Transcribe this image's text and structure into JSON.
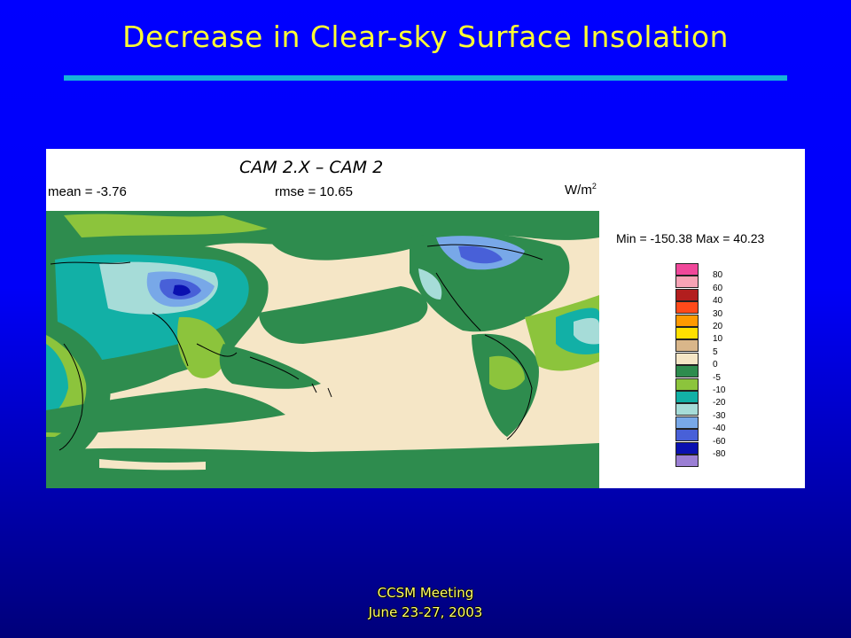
{
  "slide": {
    "title": "Decrease in Clear-sky Surface Insolation",
    "footer_line1": "CCSM Meeting",
    "footer_line2": "June 23-27, 2003"
  },
  "figure": {
    "caption": "CAM 2.X – CAM 2",
    "mean_text": "mean = -3.76",
    "rmse_text": "rmse = 10.65",
    "units_base": "W/m",
    "units_exp": "2",
    "minmax_text": "Min = -150.38 Max = 40.23",
    "legend": [
      {
        "label": "80",
        "color": "#f0489a"
      },
      {
        "label": "60",
        "color": "#f7a3b5"
      },
      {
        "label": "40",
        "color": "#b21e1e"
      },
      {
        "label": "30",
        "color": "#ff4a1a"
      },
      {
        "label": "20",
        "color": "#ff9a00"
      },
      {
        "label": "10",
        "color": "#ffe000"
      },
      {
        "label": "5",
        "color": "#d9b68a"
      },
      {
        "label": "0",
        "color": "#f5e6c6"
      },
      {
        "label": "-5",
        "color": "#2e8c4e"
      },
      {
        "label": "-10",
        "color": "#8cc43c"
      },
      {
        "label": "-20",
        "color": "#12b0a6"
      },
      {
        "label": "-30",
        "color": "#a6dcd8"
      },
      {
        "label": "-40",
        "color": "#78a8e8"
      },
      {
        "label": "-60",
        "color": "#4860d8"
      },
      {
        "label": "-80",
        "color": "#0a10b0"
      },
      {
        "label": "",
        "color": "#9b7fd4"
      }
    ]
  }
}
